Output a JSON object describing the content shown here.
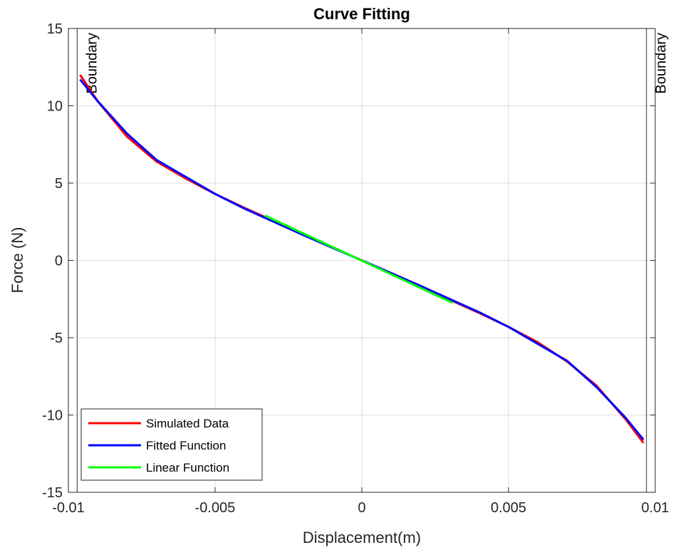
{
  "chart_data": {
    "type": "line",
    "title": "Curve Fitting",
    "xlabel": "Displacement(m)",
    "ylabel": "Force (N)",
    "xlim": [
      -0.01,
      0.01
    ],
    "ylim": [
      -15,
      15
    ],
    "grid": true,
    "x_ticks": [
      {
        "value": -0.01,
        "label": "-0.01"
      },
      {
        "value": -0.005,
        "label": "-0.005"
      },
      {
        "value": 0,
        "label": "0"
      },
      {
        "value": 0.005,
        "label": "0.005"
      },
      {
        "value": 0.01,
        "label": "0.01"
      }
    ],
    "y_ticks": [
      {
        "value": -15,
        "label": "-15"
      },
      {
        "value": -10,
        "label": "-10"
      },
      {
        "value": -5,
        "label": "-5"
      },
      {
        "value": 0,
        "label": "0"
      },
      {
        "value": 5,
        "label": "5"
      },
      {
        "value": 10,
        "label": "10"
      },
      {
        "value": 15,
        "label": "15"
      }
    ],
    "boundaries": [
      {
        "x": -0.0097,
        "label": "Boundary"
      },
      {
        "x": 0.0097,
        "label": "Boundary"
      }
    ],
    "legend_position": "bottom-left",
    "series": [
      {
        "name": "Simulated Data",
        "color": "#ff0000",
        "x": [
          -0.0096,
          -0.009,
          -0.008,
          -0.007,
          -0.006,
          -0.005,
          -0.004,
          -0.003,
          -0.002,
          -0.001,
          0,
          0.001,
          0.002,
          0.003,
          0.004,
          0.005,
          0.006,
          0.007,
          0.008,
          0.009,
          0.0096
        ],
        "y": [
          12.0,
          10.3,
          8.0,
          6.4,
          5.3,
          4.3,
          3.4,
          2.55,
          1.7,
          0.85,
          0,
          -0.85,
          -1.7,
          -2.55,
          -3.4,
          -4.3,
          -5.3,
          -6.55,
          -8.1,
          -10.3,
          -11.8
        ]
      },
      {
        "name": "Fitted Function",
        "color": "#0000ff",
        "x": [
          -0.0096,
          -0.009,
          -0.008,
          -0.007,
          -0.006,
          -0.005,
          -0.004,
          -0.003,
          -0.002,
          -0.001,
          0,
          0.001,
          0.002,
          0.003,
          0.004,
          0.005,
          0.006,
          0.007,
          0.008,
          0.009,
          0.0096
        ],
        "y": [
          11.7,
          10.3,
          8.2,
          6.5,
          5.4,
          4.3,
          3.35,
          2.5,
          1.65,
          0.82,
          0,
          -0.82,
          -1.65,
          -2.5,
          -3.35,
          -4.3,
          -5.4,
          -6.5,
          -8.2,
          -10.2,
          -11.6
        ]
      },
      {
        "name": "Linear Function",
        "color": "#00ff00",
        "x": [
          -0.0033,
          0.0031
        ],
        "y": [
          2.9,
          -2.75
        ]
      }
    ]
  }
}
